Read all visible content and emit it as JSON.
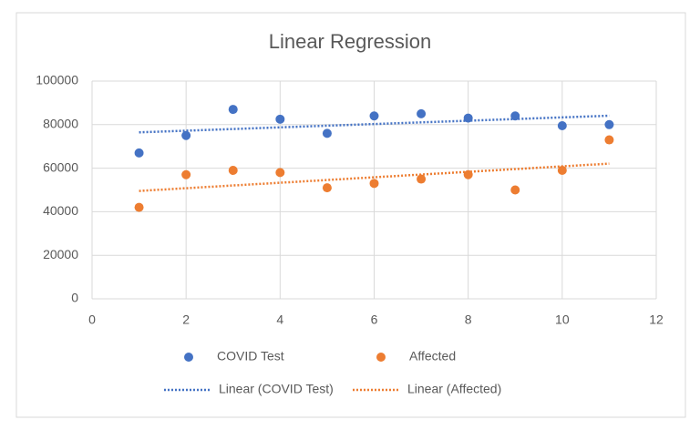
{
  "chart_data": {
    "type": "scatter",
    "title": "Linear Regression",
    "series": [
      {
        "name": "COVID Test",
        "color": "#4472c4",
        "x": [
          1,
          2,
          3,
          4,
          5,
          6,
          7,
          8,
          9,
          10,
          11
        ],
        "values": [
          67000,
          75000,
          87000,
          82500,
          76000,
          84000,
          85000,
          83000,
          84000,
          79500,
          80000
        ],
        "trendline": {
          "type": "linear",
          "name": "Linear (COVID Test)"
        }
      },
      {
        "name": "Affected",
        "color": "#ed7d31",
        "x": [
          1,
          2,
          3,
          4,
          5,
          6,
          7,
          8,
          9,
          10,
          11
        ],
        "values": [
          42000,
          57000,
          59000,
          58000,
          51000,
          53000,
          55000,
          57000,
          50000,
          59000,
          73000
        ],
        "trendline": {
          "type": "linear",
          "name": "Linear (Affected)"
        }
      }
    ],
    "xlim": [
      0,
      12
    ],
    "xticks": [
      0,
      2,
      4,
      6,
      8,
      10,
      12
    ],
    "ylim": [
      0,
      100000
    ],
    "yticks": [
      0,
      20000,
      40000,
      60000,
      80000,
      100000
    ],
    "grid": true,
    "legend": "bottom"
  }
}
